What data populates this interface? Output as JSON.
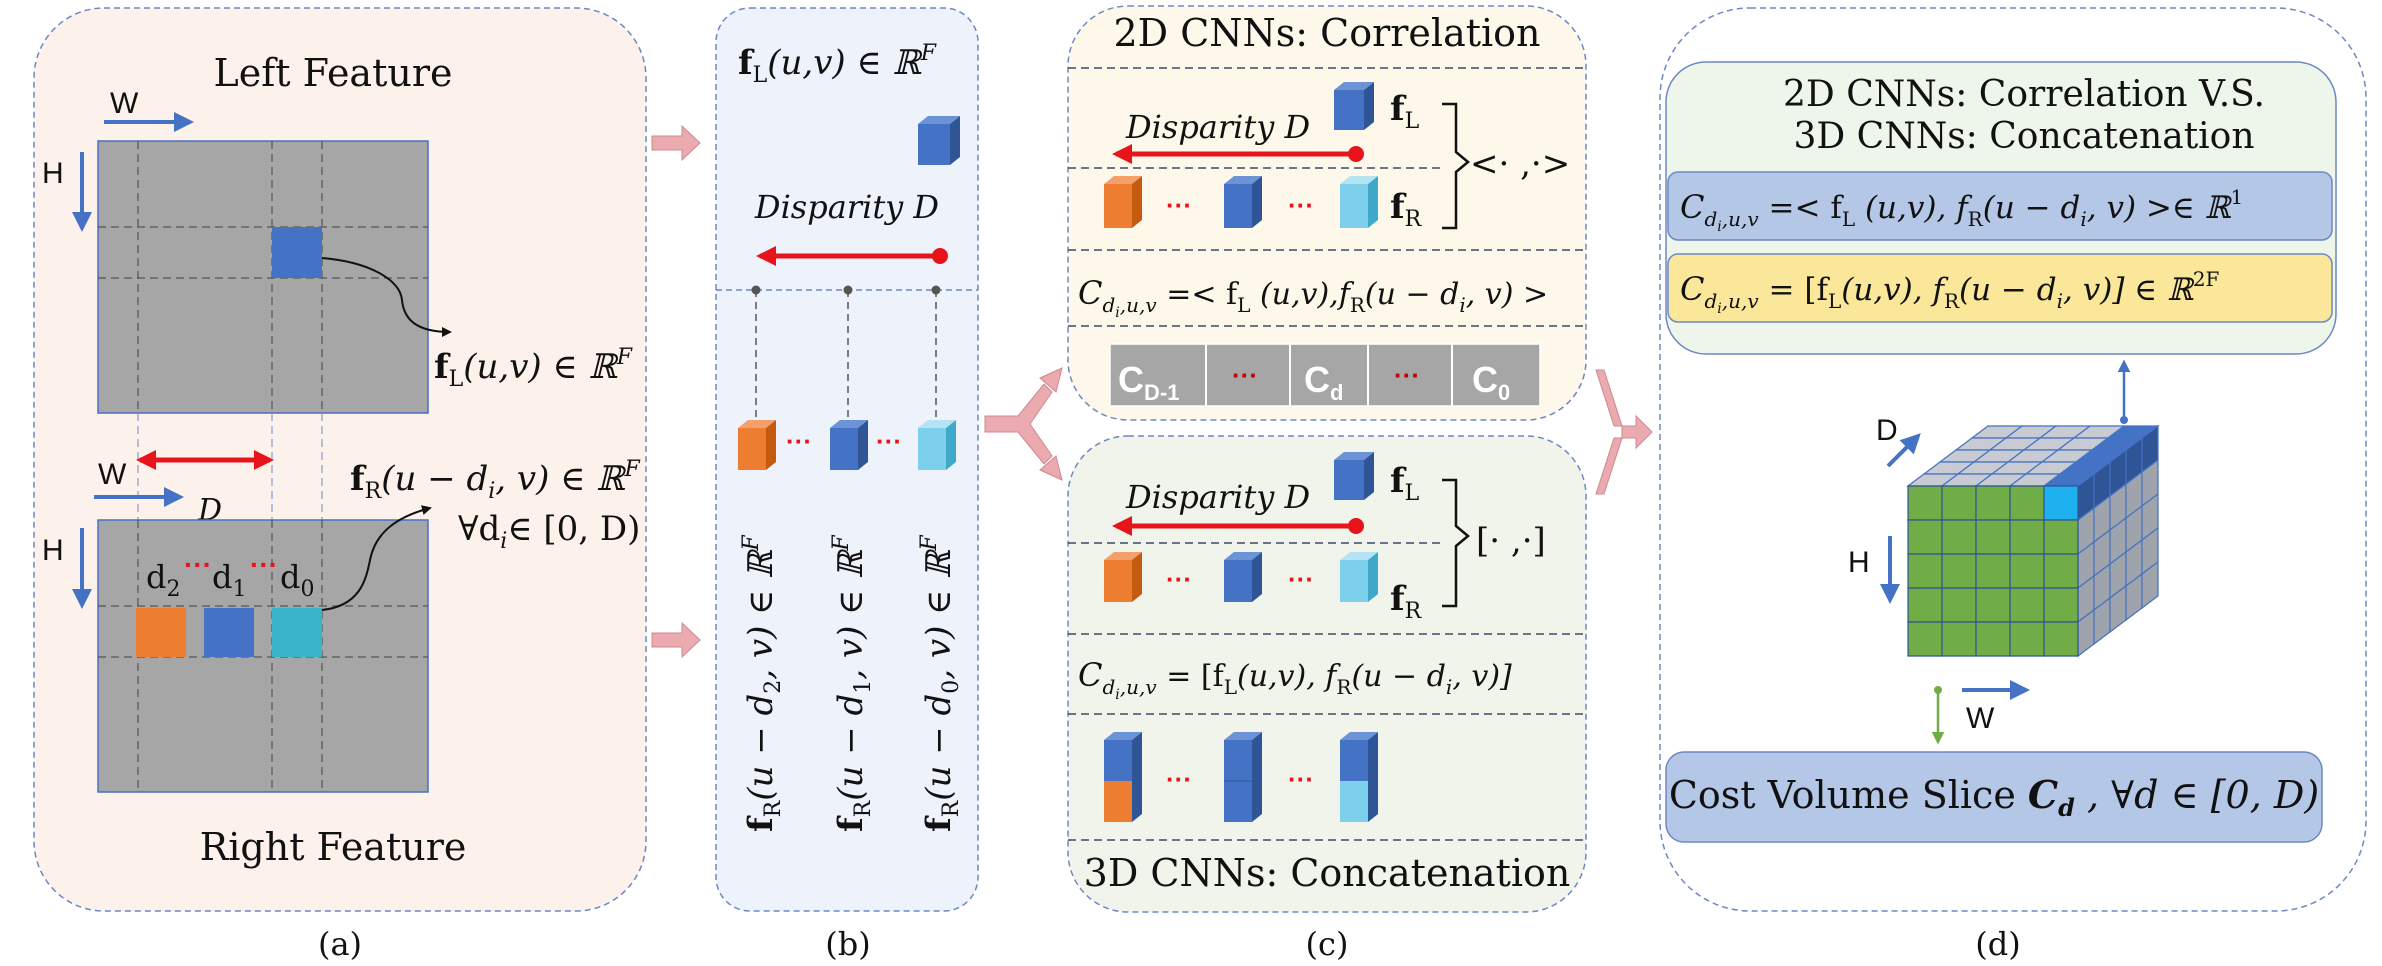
{
  "panel_a": {
    "title_top": "Left Feature",
    "title_bottom": "Right Feature",
    "w_label": "W",
    "h_label": "H",
    "d_label": "D",
    "fl_label": "f",
    "fl_sub": "L",
    "fl_rest": "(u,v) ∈ ℝ",
    "fl_sup": "F",
    "fr_label": "f",
    "fr_sub": "R",
    "fr_rest": "(u − d",
    "fr_i": "i",
    "fr_rest2": ", v) ∈ ℝ",
    "fr_sup": "F",
    "forall_pre": "∀d",
    "forall_i": "i",
    "forall_rest": "∈ [0, D)",
    "d2": "d",
    "d2_sub": "2",
    "d1": "d",
    "d1_sub": "1",
    "d0": "d",
    "d0_sub": "0",
    "dots": "···",
    "caption": "(a)"
  },
  "panel_b": {
    "fl_label": "f",
    "fl_sub": "L",
    "fl_rest": "(u,v) ∈ ℝ",
    "fl_sup": "F",
    "disparity": "Disparity D",
    "dots": "···",
    "col2": "f",
    "col_sub": "R",
    "col2_rest": "(u − d",
    "col2_i": "2",
    "col_tail": ", v) ∈ ℝ",
    "col_sup": "F",
    "col1_i": "1",
    "col0_i": "0",
    "caption": "(b)"
  },
  "panel_c": {
    "top_title": "2D CNNs: Correlation",
    "disparity": "Disparity D",
    "fl": "f",
    "fl_sub": "L",
    "fr": "f",
    "fr_sub": "R",
    "inner_product": "<· ,·>",
    "dots": "···",
    "corr_eq_c": "C",
    "corr_eq_sub": "d",
    "corr_eq_sub2": "i",
    "corr_eq_sub3": ",u,v",
    "corr_eq_rest": " =< f",
    "corr_eq_l": "L",
    "corr_eq_mid": " (u,v),f",
    "corr_eq_r": "R",
    "corr_eq_end": "(u − d",
    "corr_eq_i": "i",
    "corr_eq_tail": ", v) >",
    "slice_labels": [
      "C",
      "···",
      "C",
      "···",
      "C"
    ],
    "slice_subs": [
      "D-1",
      "",
      "d",
      "",
      "0"
    ],
    "bottom_title": "3D CNNs: Concatenation",
    "concat_bracket": "[· ,·]",
    "concat_eq_rest": " = [f",
    "concat_eq_mid": "(u,v), f",
    "concat_eq_tail": ", v)]",
    "caption": "(c)"
  },
  "panel_d": {
    "title_line1": "2D CNNs: Correlation V.S.",
    "title_line2": "3D CNNs: Concatenation",
    "eq1_c": "C",
    "eq1_sub": "d",
    "eq1_sub_i": "i",
    "eq1_sub_rest": ",u,v",
    "eq1_rest": " =< f",
    "eq1_l": "L",
    "eq1_mid": " (u,v), f",
    "eq1_r": "R",
    "eq1_end": "(u − d",
    "eq1_i": "i",
    "eq1_tail": ", v) >∈ ℝ",
    "eq1_sup": "1",
    "eq2_rest": " = [f",
    "eq2_mid": "(u,v), f",
    "eq2_tail": ", v)] ∈ ℝ",
    "eq2_sup": "2F",
    "d_label": "D",
    "h_label": "H",
    "w_label": "W",
    "cost_prefix": "Cost Volume Slice ",
    "cost_c": "C",
    "cost_sub": "d",
    "cost_suffix": " , ∀d ∈ [0, D)",
    "caption": "(d)"
  },
  "colors": {
    "panel_a_bg": "#fdf1ec",
    "panel_b_bg": "#eef2fb",
    "panel_c_top_bg": "#fdf8ea",
    "panel_c_bottom_bg": "#f1f4ea",
    "panel_d_inner_bg": "#eef5ea",
    "feature_gray": "#a6a6a6",
    "blue": "#4472c4",
    "orange": "#ed7d31",
    "light_blue": "#7dd0ec",
    "teal": "#3ab4c8",
    "red": "#e8141c",
    "green": "#70ad47",
    "eq1_bg": "#b4c7e7",
    "eq2_bg": "#fbe79a",
    "cost_bg": "#b4c7e7",
    "slice_gray": "#a6a6a6",
    "dash_blue": "#6d88c4",
    "pink_arrow": "#eaaab0"
  }
}
